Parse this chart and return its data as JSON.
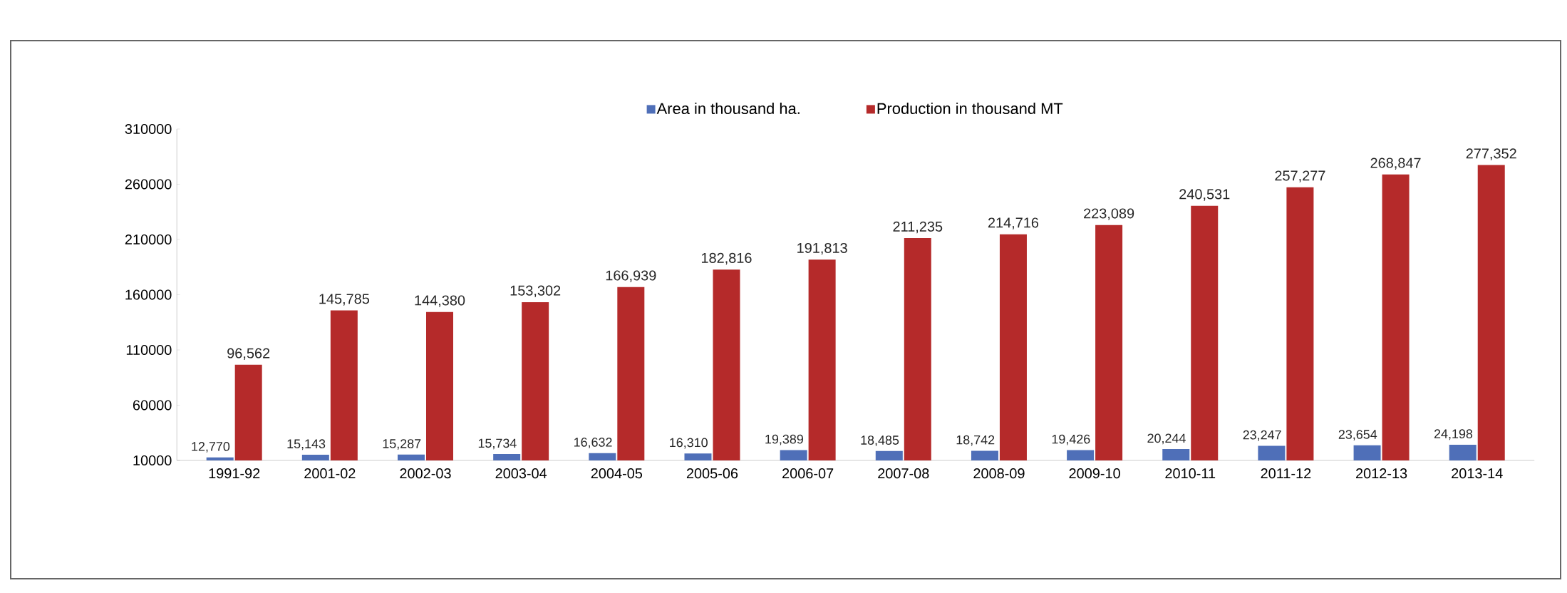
{
  "chart_data": {
    "type": "bar",
    "categories": [
      "1991-92",
      "2001-02",
      "2002-03",
      "2003-04",
      "2004-05",
      "2005-06",
      "2006-07",
      "2007-08",
      "2008-09",
      "2009-10",
      "2010-11",
      "2011-12",
      "2012-13",
      "2013-14"
    ],
    "series": [
      {
        "name": "Area in thousand ha.",
        "color": "#4f6fb8",
        "values": [
          12770,
          15143,
          15287,
          15734,
          16632,
          16310,
          19389,
          18485,
          18742,
          19426,
          20244,
          23247,
          23654,
          24198
        ],
        "value_labels": [
          "12,770",
          "15,143",
          "15,287",
          "15,734",
          "16,632",
          "16,310",
          "19,389",
          "18,485",
          "18,742",
          "19,426",
          "20,244",
          "23,247",
          "23,654",
          "24,198"
        ]
      },
      {
        "name": "Production in thousand MT",
        "color": "#b52a2a",
        "values": [
          96562,
          145785,
          144380,
          153302,
          166939,
          182816,
          191813,
          211235,
          214716,
          223089,
          240531,
          257277,
          268847,
          277352
        ],
        "value_labels": [
          "96,562",
          "145,785",
          "144,380",
          "153,302",
          "166,939",
          "182,816",
          "191,813",
          "211,235",
          "214,716",
          "223,089",
          "240,531",
          "257,277",
          "268,847",
          "277,352"
        ]
      }
    ],
    "ylim": [
      10000,
      310000
    ],
    "yticks": [
      10000,
      60000,
      110000,
      160000,
      210000,
      260000,
      310000
    ],
    "legend": "top",
    "grid": false
  }
}
